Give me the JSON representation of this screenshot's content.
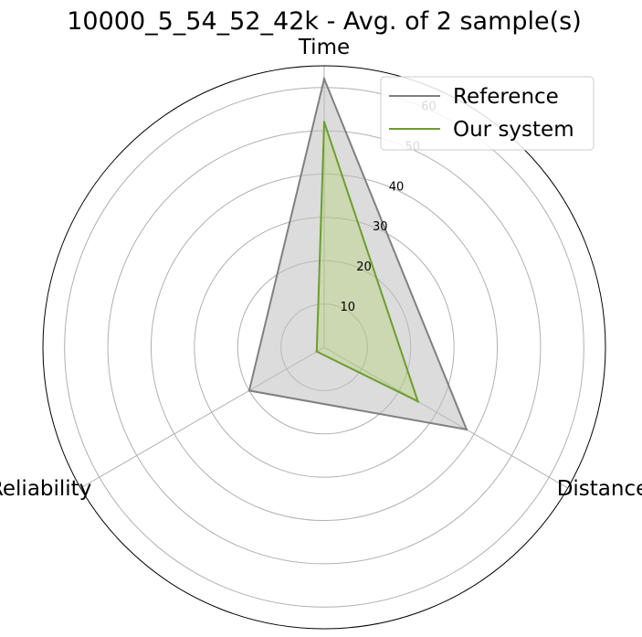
{
  "chart_data": {
    "type": "radar",
    "title": "10000_5_54_52_42k - Avg. of 2 sample(s)",
    "axes": [
      "Time",
      "Distance",
      "Reliability"
    ],
    "rmax": 65,
    "rticks": [
      10,
      20,
      30,
      40,
      50,
      60
    ],
    "series": [
      {
        "name": "Reference",
        "values": [
          62,
          38,
          20
        ],
        "line_color": "#808080",
        "fill_color": "#c0c0c0",
        "fill_opacity": 0.55
      },
      {
        "name": "Our system",
        "values": [
          52,
          25,
          2
        ],
        "line_color": "#6b9e2e",
        "fill_color": "#9acd32",
        "fill_opacity": 0.25
      }
    ],
    "grid": true,
    "legend": "top-right"
  }
}
